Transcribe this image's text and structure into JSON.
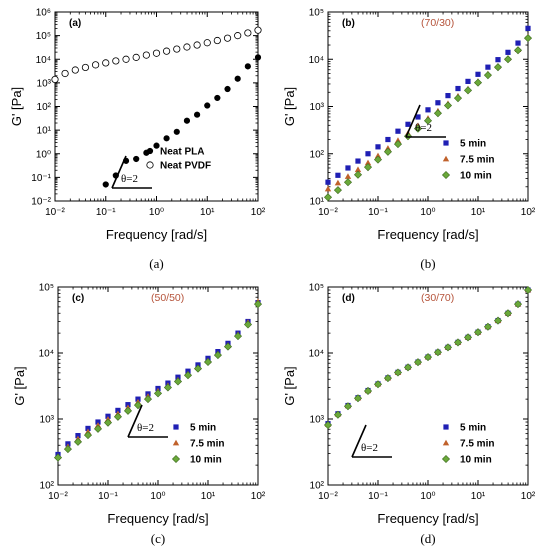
{
  "chart_data": [
    {
      "type": "scatter",
      "panel_letter": "(a)",
      "composition_label": "",
      "caption": "(a)",
      "xlabel": "Frequency [rad/s]",
      "ylabel": "G' [Pa]",
      "xscale": "log",
      "yscale": "log",
      "xlim": [
        0.01,
        100
      ],
      "ylim": [
        0.01,
        1000000
      ],
      "x_ticks": [
        "10⁻²",
        "10⁻¹",
        "10⁰",
        "10¹",
        "10²"
      ],
      "y_ticks": [
        "10⁻²",
        "10⁻¹",
        "10⁰",
        "10¹",
        "10²",
        "10³",
        "10⁴",
        "10⁵",
        "10⁶"
      ],
      "slope_annotation": "θ=2",
      "slope_pos": "bottom-left",
      "legend_pos": "lower-right",
      "series": [
        {
          "name": "Neat PLA",
          "marker": "filled-circle",
          "color": "#000000",
          "x": [
            0.1,
            0.158,
            0.251,
            0.398,
            0.631,
            1,
            1.58,
            2.51,
            3.98,
            6.31,
            10,
            15.8,
            25.1,
            39.8,
            63.1,
            100
          ],
          "y": [
            0.05,
            0.12,
            0.5,
            0.6,
            1.1,
            2.2,
            4.5,
            8.5,
            25,
            45,
            110,
            230,
            550,
            1500,
            5000,
            12000
          ]
        },
        {
          "name": "Neat PVDF",
          "marker": "open-circle",
          "color": "#000000",
          "x": [
            0.01,
            0.0158,
            0.0251,
            0.0398,
            0.0631,
            0.1,
            0.158,
            0.251,
            0.398,
            0.631,
            1,
            1.58,
            2.51,
            3.98,
            6.31,
            10,
            15.8,
            25.1,
            39.8,
            63.1,
            100
          ],
          "y": [
            1400,
            2500,
            3500,
            4500,
            5800,
            7000,
            8500,
            10000,
            12000,
            15000,
            18000,
            22000,
            27000,
            33000,
            40000,
            50000,
            62000,
            78000,
            100000,
            130000,
            170000
          ]
        }
      ]
    },
    {
      "type": "scatter",
      "panel_letter": "(b)",
      "composition_label": "(70/30)",
      "caption": "(b)",
      "xlabel": "Frequency [rad/s]",
      "ylabel": "G' [Pa]",
      "xscale": "log",
      "yscale": "log",
      "xlim": [
        0.01,
        100
      ],
      "ylim": [
        10,
        100000
      ],
      "x_ticks": [
        "10⁻²",
        "10⁻¹",
        "10⁰",
        "10¹",
        "10²"
      ],
      "y_ticks": [
        "10¹",
        "10²",
        "10³",
        "10⁴",
        "10⁵"
      ],
      "slope_annotation": "θ=2",
      "slope_pos": "mid-left",
      "legend_pos": "right",
      "series": [
        {
          "name": "5 min",
          "marker": "square",
          "color": "#1f1fb4",
          "x": [
            0.01,
            0.0158,
            0.0251,
            0.0398,
            0.0631,
            0.1,
            0.158,
            0.251,
            0.398,
            0.631,
            1,
            1.58,
            2.51,
            3.98,
            6.31,
            10,
            15.8,
            25.1,
            39.8,
            63.1,
            100
          ],
          "y": [
            25,
            35,
            50,
            70,
            100,
            140,
            200,
            300,
            420,
            600,
            850,
            1200,
            1700,
            2400,
            3400,
            4800,
            6800,
            9800,
            14000,
            22000,
            45000
          ]
        },
        {
          "name": "7.5 min",
          "marker": "triangle",
          "color": "#c0612b",
          "x": [
            0.01,
            0.0158,
            0.0251,
            0.0398,
            0.0631,
            0.1,
            0.158,
            0.251,
            0.398,
            0.631,
            1,
            1.58,
            2.51,
            3.98,
            6.31,
            10,
            15.8,
            25.1,
            39.8,
            63.1,
            100
          ],
          "y": [
            18,
            24,
            33,
            46,
            64,
            90,
            130,
            190,
            270,
            390,
            560,
            800,
            1150,
            1650,
            2350,
            3400,
            4900,
            7100,
            10500,
            16000,
            30000
          ]
        },
        {
          "name": "10 min",
          "marker": "diamond",
          "color": "#6aa83a",
          "x": [
            0.01,
            0.0158,
            0.0251,
            0.0398,
            0.0631,
            0.1,
            0.158,
            0.251,
            0.398,
            0.631,
            1,
            1.58,
            2.51,
            3.98,
            6.31,
            10,
            15.8,
            25.1,
            39.8,
            63.1,
            100
          ],
          "y": [
            12,
            17,
            25,
            36,
            52,
            75,
            110,
            160,
            235,
            340,
            500,
            720,
            1050,
            1500,
            2200,
            3200,
            4600,
            6800,
            10000,
            15500,
            28000
          ]
        }
      ]
    },
    {
      "type": "scatter",
      "panel_letter": "(c)",
      "composition_label": "(50/50)",
      "caption": "(c)",
      "xlabel": "Frequency [rad/s]",
      "ylabel": "G' [Pa]",
      "xscale": "log",
      "yscale": "log",
      "xlim": [
        0.01,
        100
      ],
      "ylim": [
        100,
        100000
      ],
      "x_ticks": [
        "10⁻²",
        "10⁻¹",
        "10⁰",
        "10¹",
        "10²"
      ],
      "y_ticks": [
        "10²",
        "10³",
        "10⁴",
        "10⁵"
      ],
      "slope_annotation": "θ=2",
      "slope_pos": "mid-left",
      "legend_pos": "right",
      "series": [
        {
          "name": "5 min",
          "marker": "square",
          "color": "#1f1fb4",
          "x": [
            0.01,
            0.0158,
            0.0251,
            0.0398,
            0.0631,
            0.1,
            0.158,
            0.251,
            0.398,
            0.631,
            1,
            1.58,
            2.51,
            3.98,
            6.31,
            10,
            15.8,
            25.1,
            39.8,
            63.1,
            100
          ],
          "y": [
            290,
            420,
            560,
            720,
            900,
            1100,
            1350,
            1650,
            2000,
            2400,
            2900,
            3500,
            4300,
            5300,
            6600,
            8300,
            10500,
            14000,
            20000,
            30000,
            58000
          ]
        },
        {
          "name": "7.5 min",
          "marker": "triangle",
          "color": "#c0612b",
          "x": [
            0.01,
            0.0158,
            0.0251,
            0.0398,
            0.0631,
            0.1,
            0.158,
            0.251,
            0.398,
            0.631,
            1,
            1.58,
            2.51,
            3.98,
            6.31,
            10,
            15.8,
            25.1,
            39.8,
            63.1,
            100
          ],
          "y": [
            270,
            380,
            500,
            640,
            800,
            990,
            1200,
            1480,
            1800,
            2200,
            2650,
            3200,
            3900,
            4800,
            6000,
            7600,
            9700,
            13000,
            19000,
            29000,
            60000
          ]
        },
        {
          "name": "10 min",
          "marker": "diamond",
          "color": "#6aa83a",
          "x": [
            0.01,
            0.0158,
            0.0251,
            0.0398,
            0.0631,
            0.1,
            0.158,
            0.251,
            0.398,
            0.631,
            1,
            1.58,
            2.51,
            3.98,
            6.31,
            10,
            15.8,
            25.1,
            39.8,
            63.1,
            100
          ],
          "y": [
            260,
            350,
            450,
            570,
            710,
            880,
            1080,
            1330,
            1620,
            2000,
            2450,
            3000,
            3700,
            4600,
            5800,
            7300,
            9300,
            12500,
            18000,
            27000,
            55000
          ]
        }
      ]
    },
    {
      "type": "scatter",
      "panel_letter": "(d)",
      "composition_label": "(30/70)",
      "caption": "(d)",
      "xlabel": "Frequency [rad/s]",
      "ylabel": "G' [Pa]",
      "xscale": "log",
      "yscale": "log",
      "xlim": [
        0.01,
        100
      ],
      "ylim": [
        100,
        100000
      ],
      "x_ticks": [
        "10⁻²",
        "10⁻¹",
        "10⁰",
        "10¹",
        "10²"
      ],
      "y_ticks": [
        "10²",
        "10³",
        "10⁴",
        "10⁵"
      ],
      "slope_annotation": "θ=2",
      "slope_pos": "lower-left",
      "legend_pos": "right",
      "series": [
        {
          "name": "5 min",
          "marker": "square",
          "color": "#1f1fb4",
          "x": [
            0.01,
            0.0158,
            0.0251,
            0.0398,
            0.0631,
            0.1,
            0.158,
            0.251,
            0.398,
            0.631,
            1,
            1.58,
            2.51,
            3.98,
            6.31,
            10,
            15.8,
            25.1,
            39.8,
            63.1,
            100
          ],
          "y": [
            850,
            1200,
            1600,
            2100,
            2700,
            3400,
            4200,
            5100,
            6100,
            7300,
            8700,
            10300,
            12200,
            14500,
            17300,
            20700,
            25000,
            31000,
            40000,
            55000,
            90000
          ]
        },
        {
          "name": "7.5 min",
          "marker": "triangle",
          "color": "#c0612b",
          "x": [
            0.01,
            0.0158,
            0.0251,
            0.0398,
            0.0631,
            0.1,
            0.158,
            0.251,
            0.398,
            0.631,
            1,
            1.58,
            2.51,
            3.98,
            6.31,
            10,
            15.8,
            25.1,
            39.8,
            63.1,
            100
          ],
          "y": [
            830,
            1180,
            1580,
            2080,
            2680,
            3380,
            4180,
            5080,
            6080,
            7280,
            8680,
            10280,
            12180,
            14480,
            17280,
            20680,
            24980,
            30980,
            39980,
            54980,
            90000
          ]
        },
        {
          "name": "10 min",
          "marker": "diamond",
          "color": "#6aa83a",
          "x": [
            0.01,
            0.0158,
            0.0251,
            0.0398,
            0.0631,
            0.1,
            0.158,
            0.251,
            0.398,
            0.631,
            1,
            1.58,
            2.51,
            3.98,
            6.31,
            10,
            15.8,
            25.1,
            39.8,
            63.1,
            100
          ],
          "y": [
            810,
            1160,
            1560,
            2060,
            2660,
            3360,
            4160,
            5060,
            6060,
            7260,
            8660,
            10260,
            12160,
            14460,
            17260,
            20660,
            24960,
            30960,
            39960,
            54960,
            90000
          ]
        }
      ]
    }
  ],
  "colors": {
    "axis": "#000000",
    "composition_text": "#b5533a"
  }
}
